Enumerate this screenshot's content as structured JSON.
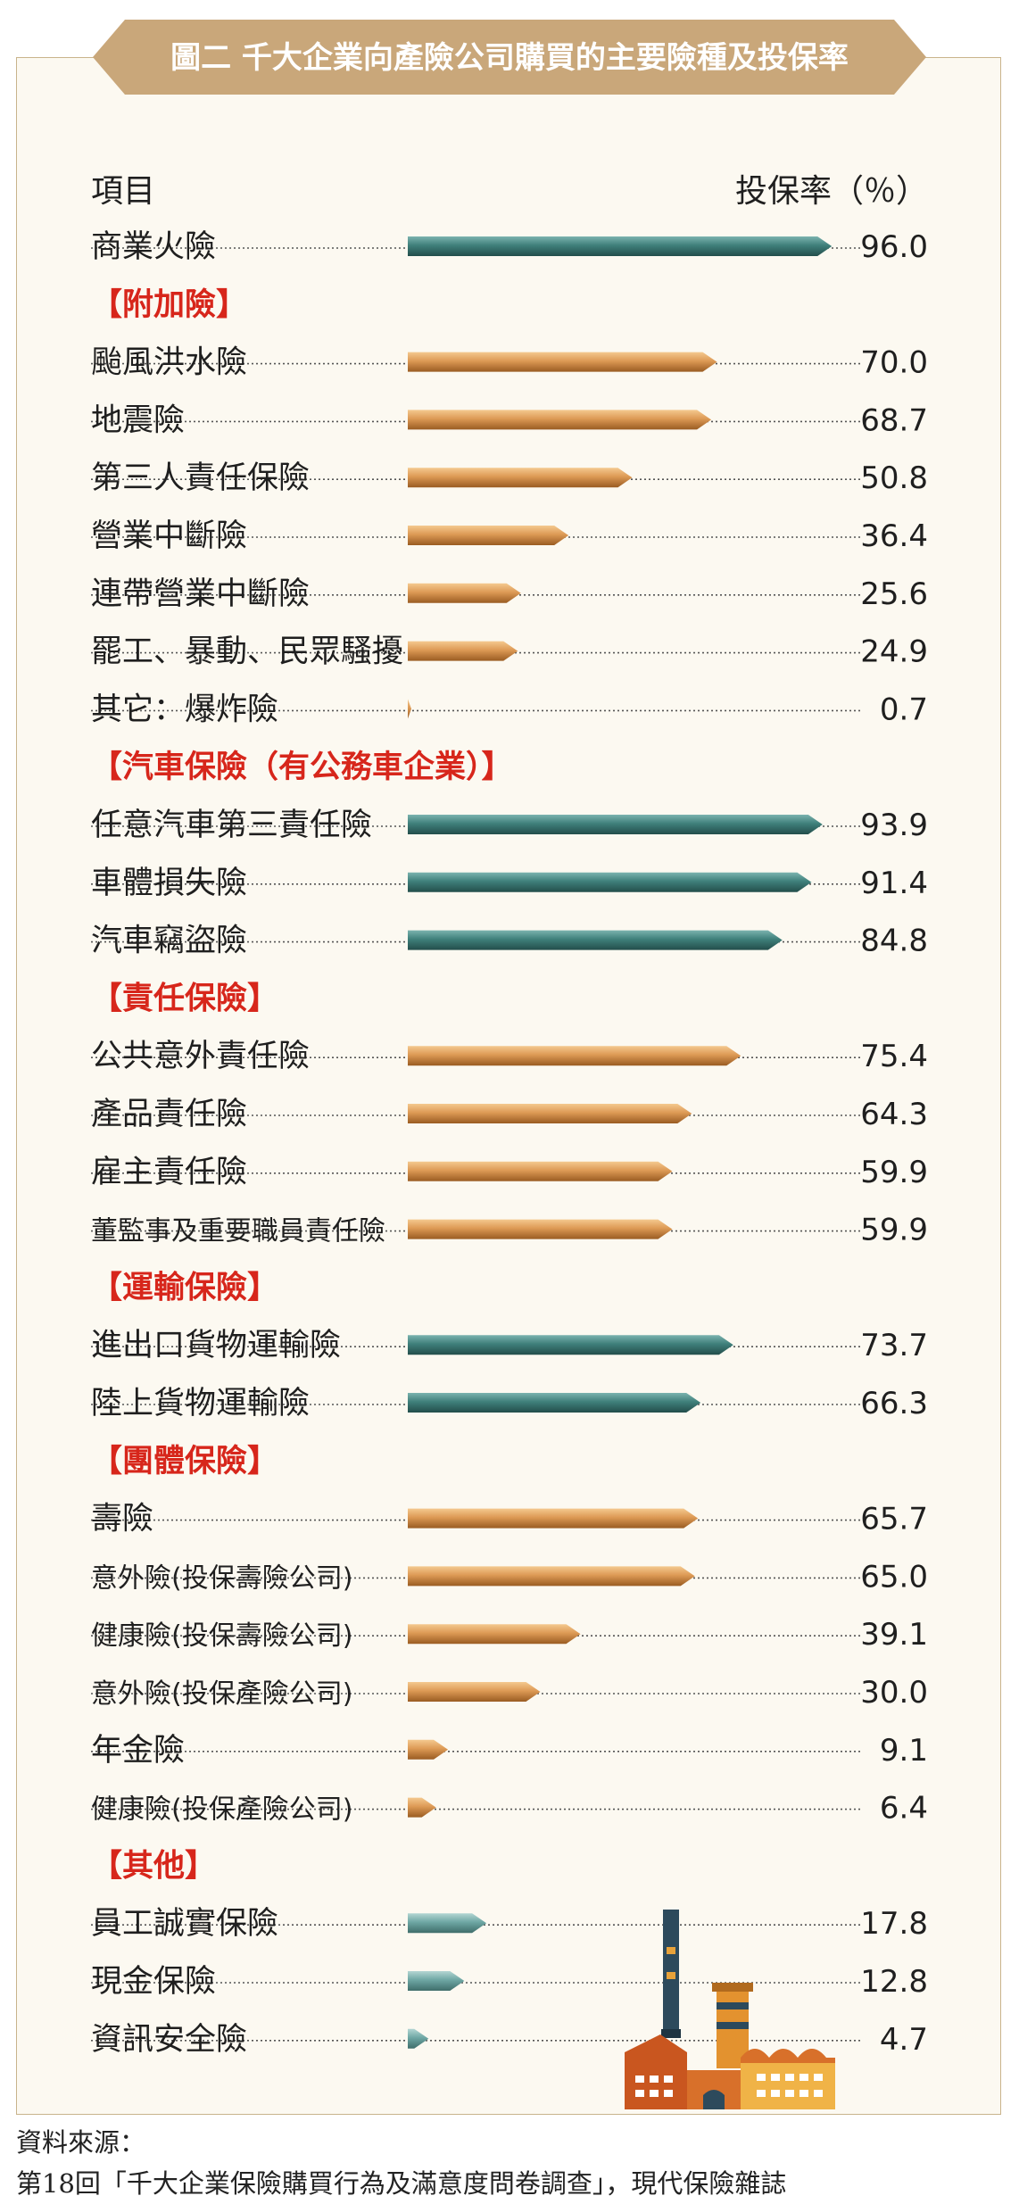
{
  "chart_data": {
    "type": "bar",
    "title": "圖二 千大企業向產險公司購買的主要險種及投保率",
    "xlabel": "項目",
    "ylabel": "投保率（％）",
    "xlim": [
      0,
      100
    ],
    "rows": [
      {
        "kind": "item",
        "label": "商業火險",
        "value": 96.0,
        "color": "teal"
      },
      {
        "kind": "section",
        "label": "【附加險】"
      },
      {
        "kind": "item",
        "label": "颱風洪水險",
        "value": 70.0,
        "color": "orange"
      },
      {
        "kind": "item",
        "label": "地震險",
        "value": 68.7,
        "color": "orange"
      },
      {
        "kind": "item",
        "label": "第三人責任保險",
        "value": 50.8,
        "color": "orange"
      },
      {
        "kind": "item",
        "label": "營業中斷險",
        "value": 36.4,
        "color": "orange"
      },
      {
        "kind": "item",
        "label": "連帶營業中斷險",
        "value": 25.6,
        "color": "orange"
      },
      {
        "kind": "item",
        "label": "罷工、暴動、民眾騷擾",
        "value": 24.9,
        "color": "orange"
      },
      {
        "kind": "item",
        "label": "其它：爆炸險",
        "value": 0.7,
        "color": "orange"
      },
      {
        "kind": "section",
        "label": "【汽車保險（有公務車企業）】"
      },
      {
        "kind": "item",
        "label": "任意汽車第三責任險",
        "value": 93.9,
        "color": "teal"
      },
      {
        "kind": "item",
        "label": "車體損失險",
        "value": 91.4,
        "color": "teal"
      },
      {
        "kind": "item",
        "label": "汽車竊盜險",
        "value": 84.8,
        "color": "teal"
      },
      {
        "kind": "section",
        "label": "【責任保險】"
      },
      {
        "kind": "item",
        "label": "公共意外責任險",
        "value": 75.4,
        "color": "orange"
      },
      {
        "kind": "item",
        "label": "產品責任險",
        "value": 64.3,
        "color": "orange"
      },
      {
        "kind": "item",
        "label": "雇主責任險",
        "value": 59.9,
        "color": "orange"
      },
      {
        "kind": "item",
        "label": "董監事及重要職員責任險",
        "value": 59.9,
        "color": "orange"
      },
      {
        "kind": "section",
        "label": "【運輸保險】"
      },
      {
        "kind": "item",
        "label": "進出口貨物運輸險",
        "value": 73.7,
        "color": "teal"
      },
      {
        "kind": "item",
        "label": "陸上貨物運輸險",
        "value": 66.3,
        "color": "teal"
      },
      {
        "kind": "section",
        "label": "【團體保險】"
      },
      {
        "kind": "item",
        "label": "壽險",
        "value": 65.7,
        "color": "orange"
      },
      {
        "kind": "item",
        "label": "意外險(投保壽險公司)",
        "value": 65.0,
        "color": "orange"
      },
      {
        "kind": "item",
        "label": "健康險(投保壽險公司)",
        "value": 39.1,
        "color": "orange"
      },
      {
        "kind": "item",
        "label": "意外險(投保產險公司)",
        "value": 30.0,
        "color": "orange"
      },
      {
        "kind": "item",
        "label": "年金險",
        "value": 9.1,
        "color": "orange"
      },
      {
        "kind": "item",
        "label": "健康險(投保產險公司)",
        "value": 6.4,
        "color": "orange"
      },
      {
        "kind": "section",
        "label": "【其他】"
      },
      {
        "kind": "item",
        "label": "員工誠實保險",
        "value": 17.8,
        "color": "lightteal"
      },
      {
        "kind": "item",
        "label": "現金保險",
        "value": 12.8,
        "color": "lightteal"
      },
      {
        "kind": "item",
        "label": "資訊安全險",
        "value": 4.7,
        "color": "lightteal"
      }
    ]
  },
  "source": {
    "line1": "資料來源：",
    "line2": "第18回「千大企業保險購買行為及滿意度問卷調查」，現代保險雜誌"
  },
  "colors": {
    "title_band": "#c9a77a",
    "section_red": "#d7261b",
    "teal": "#3d7c78",
    "orange": "#dd9b59",
    "lightteal": "#6ea7a4"
  }
}
